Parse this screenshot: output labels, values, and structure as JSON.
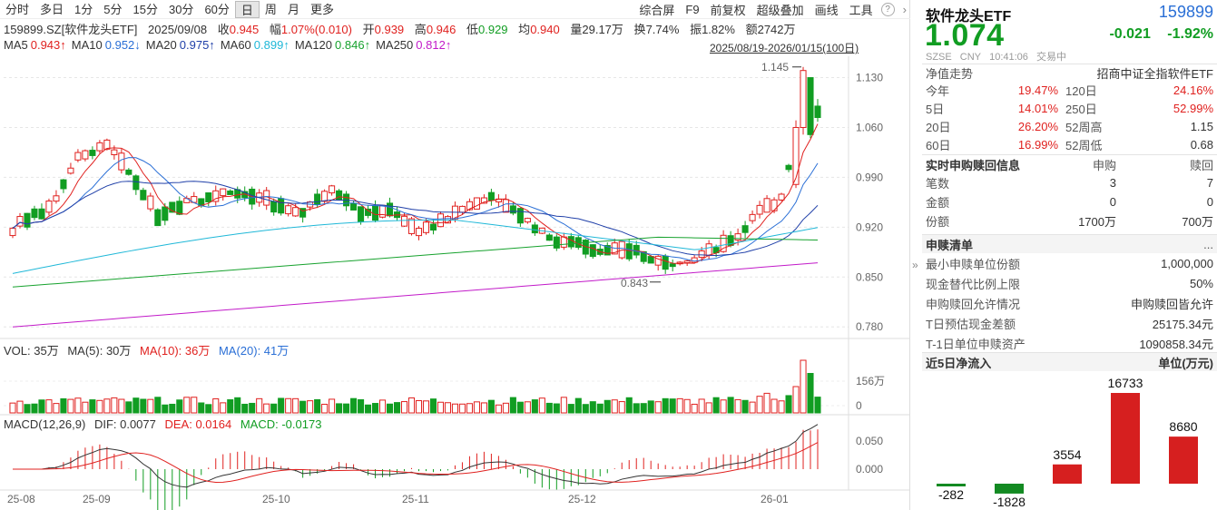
{
  "periods": [
    "分时",
    "多日",
    "1分",
    "5分",
    "15分",
    "30分",
    "60分",
    "日",
    "周",
    "月",
    "更多"
  ],
  "active_period": "日",
  "tools": [
    "综合屏",
    "F9",
    "前复权",
    "超级叠加",
    "画线",
    "工具"
  ],
  "info": {
    "symbol": "159899.SZ[软件龙头ETF]",
    "date": "2025/09/08",
    "close_label": "收",
    "close": "0.945",
    "range_label": "幅",
    "range": "1.07%(0.010)",
    "open_label": "开",
    "open": "0.939",
    "high_label": "高",
    "high": "0.946",
    "low_label": "低",
    "low": "0.929",
    "avg_label": "均",
    "avg": "0.940",
    "vol_label": "量",
    "vol": "29.17万",
    "turn_label": "换",
    "turn": "7.74%",
    "amp_label": "振",
    "amp": "1.82%",
    "amt_label": "额",
    "amt": "2742万"
  },
  "ma": [
    {
      "label": "MA5",
      "value": "0.943↑",
      "color": "#e0211f"
    },
    {
      "label": "MA10",
      "value": "0.952↓",
      "color": "#2a6fd6"
    },
    {
      "label": "MA20",
      "value": "0.975↑",
      "color": "#1f3fa8"
    },
    {
      "label": "MA60",
      "value": "0.899↑",
      "color": "#20b8d8"
    },
    {
      "label": "MA120",
      "value": "0.846↑",
      "color": "#17a22e"
    },
    {
      "label": "MA250",
      "value": "0.812↑",
      "color": "#c21bc9"
    }
  ],
  "date_range": "2025/08/19-2026/01/15(100日)",
  "chart_data": {
    "type": "candlestick",
    "y_ticks": [
      "1.130",
      "1.060",
      "0.990",
      "0.920",
      "0.850",
      "0.780"
    ],
    "ylim": [
      0.765,
      1.16
    ],
    "x_ticks": [
      "25-08",
      "25-09",
      "25-10",
      "25-11",
      "25-12",
      "26-01"
    ],
    "max_label": "1.145",
    "min_label": "0.843",
    "volume": {
      "label": "VOL: 35万",
      "ma5": "MA(5): 30万",
      "ma10": "MA(10): 36万",
      "ma20": "MA(20): 41万",
      "ticks": [
        "156万",
        "0"
      ]
    },
    "macd": {
      "label": "MACD(12,26,9)",
      "dif": "DIF: 0.0077",
      "dea": "DEA: 0.0164",
      "macd": "MACD: -0.0173",
      "ticks": [
        "0.050",
        "0.000"
      ]
    }
  },
  "right": {
    "title": "软件龙头ETF",
    "code": "159899",
    "price": "1.074",
    "change": "-0.021",
    "change_pct": "-1.92%",
    "meta": [
      "SZSE",
      "CNY",
      "10:41:06",
      "交易中"
    ],
    "nav_label": "净值走势",
    "nav_index": "招商中证全指软件ETF",
    "perf": [
      {
        "k1": "今年",
        "v1": "19.47%",
        "k2": "120日",
        "v2": "24.16%"
      },
      {
        "k1": "5日",
        "v1": "14.01%",
        "k2": "250日",
        "v2": "52.99%"
      },
      {
        "k1": "20日",
        "v1": "26.20%",
        "k2": "52周高",
        "v2": "1.15"
      },
      {
        "k1": "60日",
        "v1": "16.99%",
        "k2": "52周低",
        "v2": "0.68"
      }
    ],
    "rt_section": "实时申购赎回信息",
    "rt_buy": "申购",
    "rt_sell": "赎回",
    "rt_rows": [
      {
        "k": "笔数",
        "b": "3",
        "s": "7"
      },
      {
        "k": "金额",
        "b": "0",
        "s": "0"
      },
      {
        "k": "份额",
        "b": "1700万",
        "s": "700万"
      }
    ],
    "list_section": "申赎清单",
    "list_more": "...",
    "list_rows": [
      {
        "k": "最小申赎单位份额",
        "v": "1,000,000"
      },
      {
        "k": "现金替代比例上限",
        "v": "50%"
      },
      {
        "k": "申购赎回允许情况",
        "v": "申购赎回皆允许"
      },
      {
        "k": "T日预估现金差额",
        "v": "25175.34元"
      },
      {
        "k": "T-1日单位申赎资产",
        "v": "1090858.34元"
      }
    ],
    "flow_section": "近5日净流入",
    "flow_unit": "单位(万元)",
    "flow": {
      "type": "bar",
      "values": [
        -282,
        -1828,
        3554,
        16733,
        8680
      ],
      "labels": [
        "-282",
        "-1828",
        "3554",
        "16733",
        "8680"
      ]
    }
  }
}
